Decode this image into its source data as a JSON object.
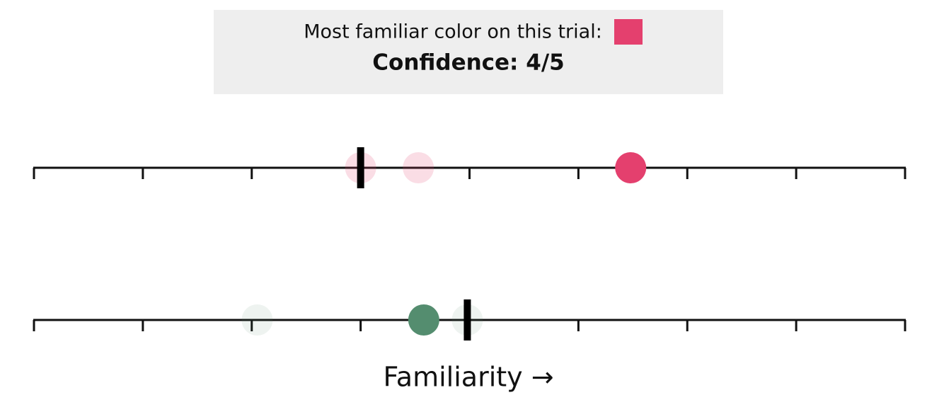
{
  "header": {
    "prompt": "Most familiar color on this trial:",
    "swatch_color": "#e4406e",
    "confidence": "Confidence: 4/5"
  },
  "chart_data": [
    {
      "type": "strip",
      "xlim": [
        0,
        8
      ],
      "xticks": [
        0,
        1,
        2,
        3,
        4,
        5,
        6,
        7,
        8
      ],
      "color": "#e4406e",
      "x": [
        3,
        3.53,
        5.48
      ],
      "opacity": [
        0.18,
        0.18,
        1
      ],
      "marker": 3
    },
    {
      "type": "strip",
      "xlim": [
        0,
        8
      ],
      "xticks": [
        0,
        1,
        2,
        3,
        4,
        5,
        6,
        7,
        8
      ],
      "color": "#548d6f",
      "x": [
        2.05,
        3.58,
        3.98
      ],
      "opacity": [
        0.1,
        1,
        0.1
      ],
      "marker": 3.98,
      "xlabel": "Familiarity →"
    }
  ]
}
